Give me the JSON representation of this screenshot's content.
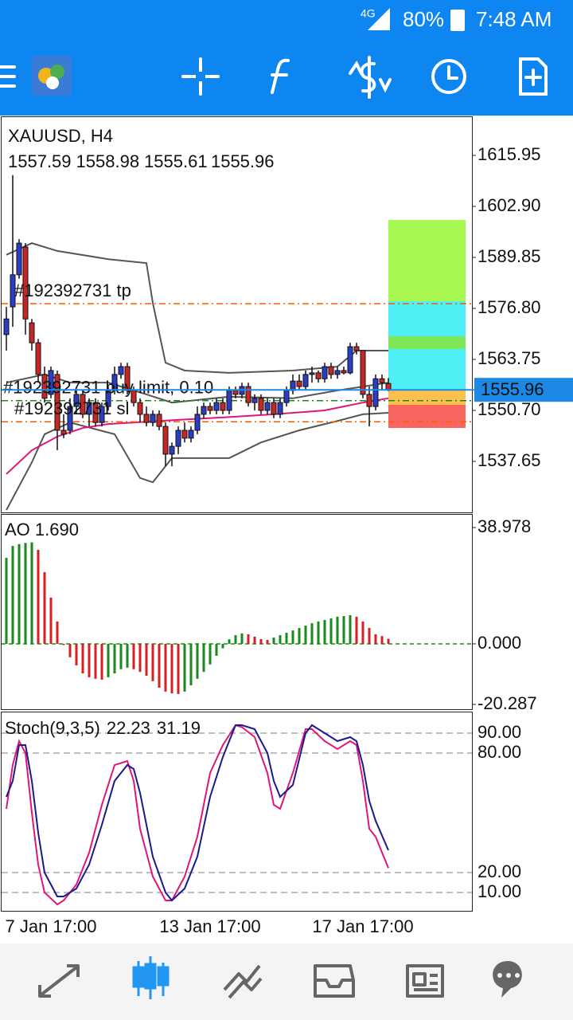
{
  "status_bar": {
    "network": "4G",
    "battery": "80%",
    "time": "7:48 AM"
  },
  "chart_data": [
    {
      "type": "candlestick",
      "title": "XAUUSD, H4",
      "categories": [
        null,
        null,
        null,
        null,
        null,
        null,
        null,
        "7 Jan 17:00",
        null,
        null,
        null,
        null,
        null,
        null,
        null,
        null,
        null,
        null,
        null,
        null,
        null,
        null,
        null,
        null,
        null,
        null,
        null,
        null,
        null,
        null,
        null,
        null,
        "13 Jan 17:00",
        null,
        null,
        null,
        null,
        null,
        null,
        null,
        null,
        null,
        null,
        null,
        null,
        null,
        null,
        null,
        null,
        null,
        null,
        null,
        null,
        null,
        null,
        null,
        "17 Jan 17:00",
        null,
        null,
        null,
        null
      ],
      "candles": [
        [
          1570.1,
          1577.2,
          1566.0,
          1574.1
        ],
        [
          1577.2,
          1610.9,
          1572.1,
          1585.4
        ],
        [
          1585.4,
          1594.5,
          1584.4,
          1593.5
        ],
        [
          1592.5,
          1593.5,
          1570.1,
          1574.1
        ],
        [
          1573.1,
          1574.1,
          1566.0,
          1568.0
        ],
        [
          1568.0,
          1569.0,
          1557.8,
          1559.9
        ],
        [
          1559.9,
          1561.9,
          1552.7,
          1553.8
        ],
        [
          1554.8,
          1561.9,
          1553.8,
          1560.9
        ],
        [
          1559.9,
          1560.9,
          1540.5,
          1545.6
        ],
        [
          1545.6,
          1549.7,
          1543.6,
          1544.6
        ],
        [
          1545.6,
          1553.8,
          1544.6,
          1551.7
        ],
        [
          1551.7,
          1555.8,
          1549.7,
          1554.8
        ],
        [
          1554.8,
          1555.8,
          1548.7,
          1549.7
        ],
        [
          1549.7,
          1553.8,
          1546.6,
          1552.7
        ],
        [
          1552.7,
          1553.8,
          1546.6,
          1547.6
        ],
        [
          1547.6,
          1552.7,
          1546.6,
          1551.7
        ],
        [
          1551.7,
          1556.8,
          1550.7,
          1555.8
        ],
        [
          1555.8,
          1561.9,
          1554.8,
          1559.9
        ],
        [
          1559.9,
          1562.9,
          1558.8,
          1561.9
        ],
        [
          1561.9,
          1562.9,
          1554.8,
          1555.8
        ],
        [
          1555.8,
          1556.8,
          1551.7,
          1552.7
        ],
        [
          1552.7,
          1553.8,
          1547.6,
          1549.7
        ],
        [
          1549.7,
          1551.7,
          1546.6,
          1547.6
        ],
        [
          1547.6,
          1550.7,
          1546.6,
          1549.7
        ],
        [
          1549.7,
          1550.7,
          1545.6,
          1546.6
        ],
        [
          1546.6,
          1547.6,
          1536.4,
          1539.5
        ],
        [
          1539.5,
          1542.5,
          1536.4,
          1541.5
        ],
        [
          1541.5,
          1546.6,
          1539.5,
          1545.6
        ],
        [
          1545.6,
          1547.6,
          1542.5,
          1543.6
        ],
        [
          1543.6,
          1546.6,
          1542.5,
          1545.6
        ],
        [
          1545.6,
          1551.7,
          1544.6,
          1549.7
        ],
        [
          1549.7,
          1552.7,
          1548.7,
          1551.7
        ],
        [
          1551.7,
          1552.7,
          1549.7,
          1550.7
        ],
        [
          1550.7,
          1553.8,
          1549.7,
          1552.7
        ],
        [
          1552.7,
          1553.8,
          1549.7,
          1550.7
        ],
        [
          1550.7,
          1556.8,
          1549.7,
          1555.8
        ],
        [
          1555.8,
          1556.8,
          1553.8,
          1554.8
        ],
        [
          1554.8,
          1557.8,
          1553.8,
          1556.8
        ],
        [
          1556.8,
          1557.8,
          1551.7,
          1552.7
        ],
        [
          1552.7,
          1554.8,
          1550.7,
          1553.8
        ],
        [
          1553.8,
          1554.8,
          1549.7,
          1550.7
        ],
        [
          1550.7,
          1553.8,
          1549.7,
          1552.7
        ],
        [
          1552.7,
          1553.8,
          1548.7,
          1549.7
        ],
        [
          1549.7,
          1553.8,
          1548.7,
          1552.7
        ],
        [
          1552.7,
          1556.8,
          1551.7,
          1555.8
        ],
        [
          1555.8,
          1559.9,
          1554.8,
          1558.2
        ],
        [
          1558.2,
          1559.9,
          1555.8,
          1556.8
        ],
        [
          1556.8,
          1560.9,
          1555.8,
          1559.9
        ],
        [
          1559.9,
          1561.9,
          1557.8,
          1560.3
        ],
        [
          1560.3,
          1560.9,
          1557.8,
          1558.8
        ],
        [
          1558.8,
          1562.9,
          1557.8,
          1561.9
        ],
        [
          1561.9,
          1562.9,
          1558.8,
          1559.9
        ],
        [
          1559.9,
          1561.9,
          1558.8,
          1560.9
        ],
        [
          1560.9,
          1561.9,
          1559.9,
          1560.3
        ],
        [
          1560.3,
          1568.0,
          1559.9,
          1567.0
        ],
        [
          1567.0,
          1568.0,
          1565.0,
          1566.0
        ],
        [
          1566.0,
          1566.0,
          1553.8,
          1554.8
        ],
        [
          1554.8,
          1556.8,
          1546.6,
          1551.7
        ],
        [
          1551.7,
          1559.9,
          1550.7,
          1558.8
        ],
        [
          1558.8,
          1559.9,
          1555.8,
          1557.8
        ],
        [
          1557.59,
          1558.98,
          1555.61,
          1555.96
        ]
      ],
      "up_color": "#2c3cc4",
      "down_color": "#c62828",
      "series": [
        {
          "color": "#555555",
          "x": [
            0,
            4,
            8,
            16,
            22,
            23,
            25,
            28,
            35,
            45,
            52,
            55,
            60
          ],
          "values": [
            1590.5,
            1593.5,
            1591.5,
            1589.4,
            1588.4,
            1578.2,
            1562.9,
            1560.9,
            1560.3,
            1560.9,
            1561.9,
            1566.0,
            1566.0
          ]
        },
        {
          "color": "#555555",
          "x": [
            0,
            6,
            10,
            16,
            22,
            26,
            35,
            45,
            52,
            56,
            60
          ],
          "values": [
            1557.8,
            1559.9,
            1557.8,
            1557.8,
            1554.8,
            1552.7,
            1554.2,
            1553.8,
            1555.8,
            1556.8,
            1557.8
          ]
        },
        {
          "color": "#555555",
          "x": [
            0,
            4,
            6,
            10,
            17,
            21,
            23,
            26,
            35,
            40,
            46,
            52,
            56,
            60
          ],
          "values": [
            1525.2,
            1537.4,
            1544.6,
            1547.6,
            1544.6,
            1533.4,
            1532.3,
            1538.5,
            1538.5,
            1542.5,
            1545.6,
            1548.0,
            1549.7,
            1550.1
          ]
        },
        {
          "color": "#e0157a",
          "x": [
            0,
            4,
            8,
            12,
            16,
            24,
            35,
            42,
            50,
            56,
            60
          ],
          "values": [
            1534.4,
            1540.5,
            1544.0,
            1546.2,
            1547.2,
            1548.0,
            1549.0,
            1549.7,
            1550.7,
            1552.7,
            1553.8
          ]
        }
      ],
      "orders": [
        {
          "label": "#192392731 tp",
          "price": 1578.0,
          "color": "#ff5a00"
        },
        {
          "label": "#192392731 buy limit, 0.10",
          "price": 1553.2,
          "color": "#1b8a1b"
        },
        {
          "label": "#192392731 sl",
          "price": 1547.8,
          "color": "#ff5a00"
        }
      ],
      "price_color": "#1e88e5",
      "ylim": [
        1524.6,
        1625.74
      ],
      "yticks": [
        1615.95,
        {
          "value": 1602.9,
          "label": "1602.90"
        },
        1589.85,
        {
          "value": 1576.8,
          "label": "1576.80"
        },
        1563.75,
        {
          "value": 1550.7,
          "label": "1550.70"
        },
        1537.65
      ]
    },
    {
      "type": "bar",
      "title": "AO 1.690",
      "values": [
        28.8,
        32.8,
        33.4,
        33.8,
        34.0,
        31.5,
        24.0,
        15.5,
        7.5,
        -0.4,
        -4.5,
        -7.2,
        -9.9,
        -11.2,
        -11.7,
        -12.0,
        -11.2,
        -9.9,
        -8.5,
        -8.0,
        -8.5,
        -9.4,
        -10.7,
        -12.5,
        -14.7,
        -16.0,
        -16.6,
        -16.8,
        -16.0,
        -13.9,
        -11.7,
        -9.4,
        -6.9,
        -4.0,
        -1.5,
        1.5,
        2.9,
        3.5,
        3.2,
        2.4,
        1.6,
        1.3,
        2.1,
        2.9,
        3.7,
        4.5,
        5.3,
        6.1,
        6.9,
        7.5,
        8.0,
        8.5,
        9.1,
        9.3,
        9.6,
        9.1,
        7.5,
        5.3,
        3.2,
        2.6,
        1.69
      ],
      "up_color": "#1b8a1b",
      "down_color": "#d42020",
      "ylim": [
        -21.9,
        43.5
      ],
      "yticks": [
        38.978,
        {
          "value": 0,
          "label": "0.000"
        },
        -20.287
      ]
    },
    {
      "type": "line",
      "title": "Stoch(9,3,5)",
      "series": [
        {
          "color": "#e0157a",
          "x": [
            0,
            1,
            2,
            3,
            4,
            5,
            6,
            8,
            9,
            11,
            13,
            15,
            17,
            19,
            20,
            21,
            23,
            25,
            26,
            28,
            30,
            32,
            34,
            36,
            37,
            39,
            41,
            42,
            43,
            45,
            47,
            48,
            50,
            52,
            54,
            55,
            56,
            57,
            58,
            60
          ],
          "values": [
            52,
            74,
            86,
            80,
            50,
            24,
            10,
            4,
            6,
            14,
            30,
            54,
            74,
            76,
            66,
            42,
            18,
            6,
            6,
            18,
            38,
            70,
            84,
            94,
            93,
            88,
            70,
            54,
            52,
            70,
            92,
            92,
            86,
            82,
            86,
            84,
            66,
            42,
            38,
            22.23
          ]
        },
        {
          "color": "#1a1a8c",
          "x": [
            0,
            1,
            2,
            3,
            4,
            5,
            6,
            8,
            9,
            11,
            13,
            15,
            17,
            19,
            20,
            21,
            23,
            25,
            26,
            28,
            30,
            32,
            34,
            36,
            37,
            39,
            41,
            42,
            43,
            45,
            47,
            48,
            50,
            52,
            54,
            55,
            56,
            57,
            58,
            60
          ],
          "values": [
            58,
            66,
            84,
            84,
            66,
            40,
            20,
            8,
            8,
            12,
            24,
            44,
            66,
            74,
            72,
            60,
            28,
            10,
            6,
            12,
            28,
            58,
            78,
            94,
            94,
            92,
            80,
            66,
            58,
            64,
            90,
            94,
            90,
            86,
            88,
            86,
            74,
            56,
            46,
            31.19
          ]
        }
      ],
      "ylim": [
        0,
        100
      ],
      "yticks": [
        {
          "value": 90,
          "label": "90.00"
        },
        {
          "value": 80,
          "label": "80.00"
        },
        {
          "value": 20,
          "label": "20.00"
        },
        {
          "value": 10,
          "label": "10.00"
        }
      ]
    }
  ]
}
